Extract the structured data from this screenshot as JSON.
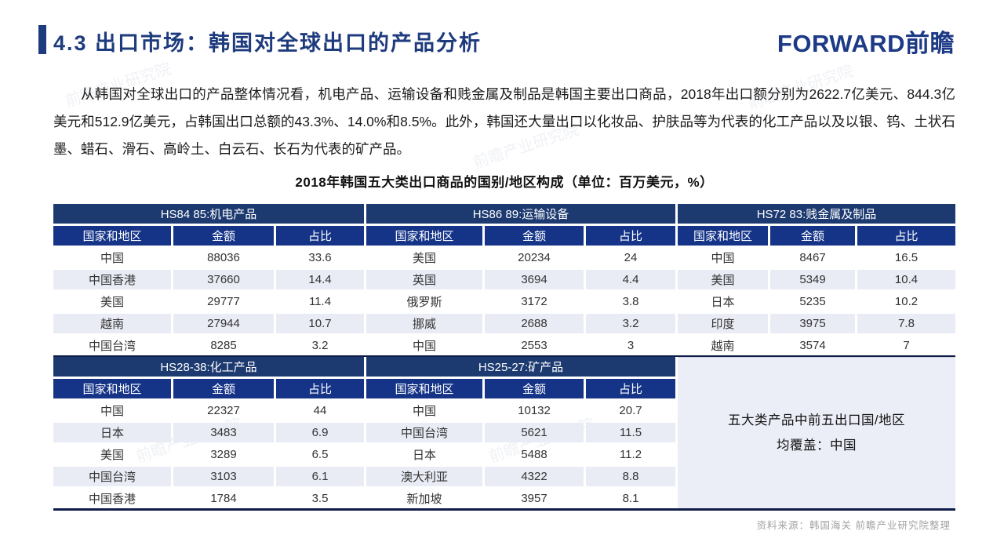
{
  "header": {
    "title": "4.3 出口市场：韩国对全球出口的产品分析",
    "logo": "FORWARD前瞻"
  },
  "intro": {
    "text": "从韩国对全球出口的产品整体情况看，机电产品、运输设备和贱金属及制品是韩国主要出口商品，2018年出口额分别为2622.7亿美元、844.3亿美元和512.9亿美元，占韩国出口总额的43.3%、14.0%和8.5%。此外，韩国还大量出口以化妆品、护肤品等为代表的化工产品以及以银、钨、土状石墨、蜡石、滑石、高岭土、白云石、长石为代表的矿产品。"
  },
  "table": {
    "title": "2018年韩国五大类出口商品的国别/地区构成（单位：百万美元，%）",
    "columns": [
      "国家和地区",
      "金额",
      "占比"
    ],
    "groups": [
      {
        "name": "HS84 85:机电产品",
        "rows": [
          [
            "中国",
            "88036",
            "33.6"
          ],
          [
            "中国香港",
            "37660",
            "14.4"
          ],
          [
            "美国",
            "29777",
            "11.4"
          ],
          [
            "越南",
            "27944",
            "10.7"
          ],
          [
            "中国台湾",
            "8285",
            "3.2"
          ]
        ]
      },
      {
        "name": "HS86 89:运输设备",
        "rows": [
          [
            "美国",
            "20234",
            "24"
          ],
          [
            "英国",
            "3694",
            "4.4"
          ],
          [
            "俄罗斯",
            "3172",
            "3.8"
          ],
          [
            "挪威",
            "2688",
            "3.2"
          ],
          [
            "中国",
            "2553",
            "3"
          ]
        ]
      },
      {
        "name": "HS72 83:贱金属及制品",
        "rows": [
          [
            "中国",
            "8467",
            "16.5"
          ],
          [
            "美国",
            "5349",
            "10.4"
          ],
          [
            "日本",
            "5235",
            "10.2"
          ],
          [
            "印度",
            "3975",
            "7.8"
          ],
          [
            "越南",
            "3574",
            "7"
          ]
        ]
      },
      {
        "name": "HS28-38:化工产品",
        "rows": [
          [
            "中国",
            "22327",
            "44"
          ],
          [
            "日本",
            "3483",
            "6.9"
          ],
          [
            "美国",
            "3289",
            "6.5"
          ],
          [
            "中国台湾",
            "3103",
            "6.1"
          ],
          [
            "中国香港",
            "1784",
            "3.5"
          ]
        ]
      },
      {
        "name": "HS25-27:矿产品",
        "rows": [
          [
            "中国",
            "10132",
            "20.7"
          ],
          [
            "中国台湾",
            "5621",
            "11.5"
          ],
          [
            "日本",
            "5488",
            "11.2"
          ],
          [
            "澳大利亚",
            "4322",
            "8.8"
          ],
          [
            "新加坡",
            "3957",
            "8.1"
          ]
        ]
      }
    ],
    "note": {
      "line1": "五大类产品中前五出口国/地区",
      "line2": "均覆盖：中国"
    }
  },
  "footer": {
    "source": "资料来源：韩国海关  前瞻产业研究院整理"
  },
  "watermark": {
    "text": "前瞻产业研究院"
  },
  "colors": {
    "accent_navy": "#1e3b7d",
    "group_header_bg": "#1c3a70",
    "sub_header_bg": "#153488",
    "stripe_bg": "#e9ecf5",
    "note_bg": "#eceef7",
    "border_dark": "#0f1d49",
    "source_gray": "#a3a3a3"
  }
}
